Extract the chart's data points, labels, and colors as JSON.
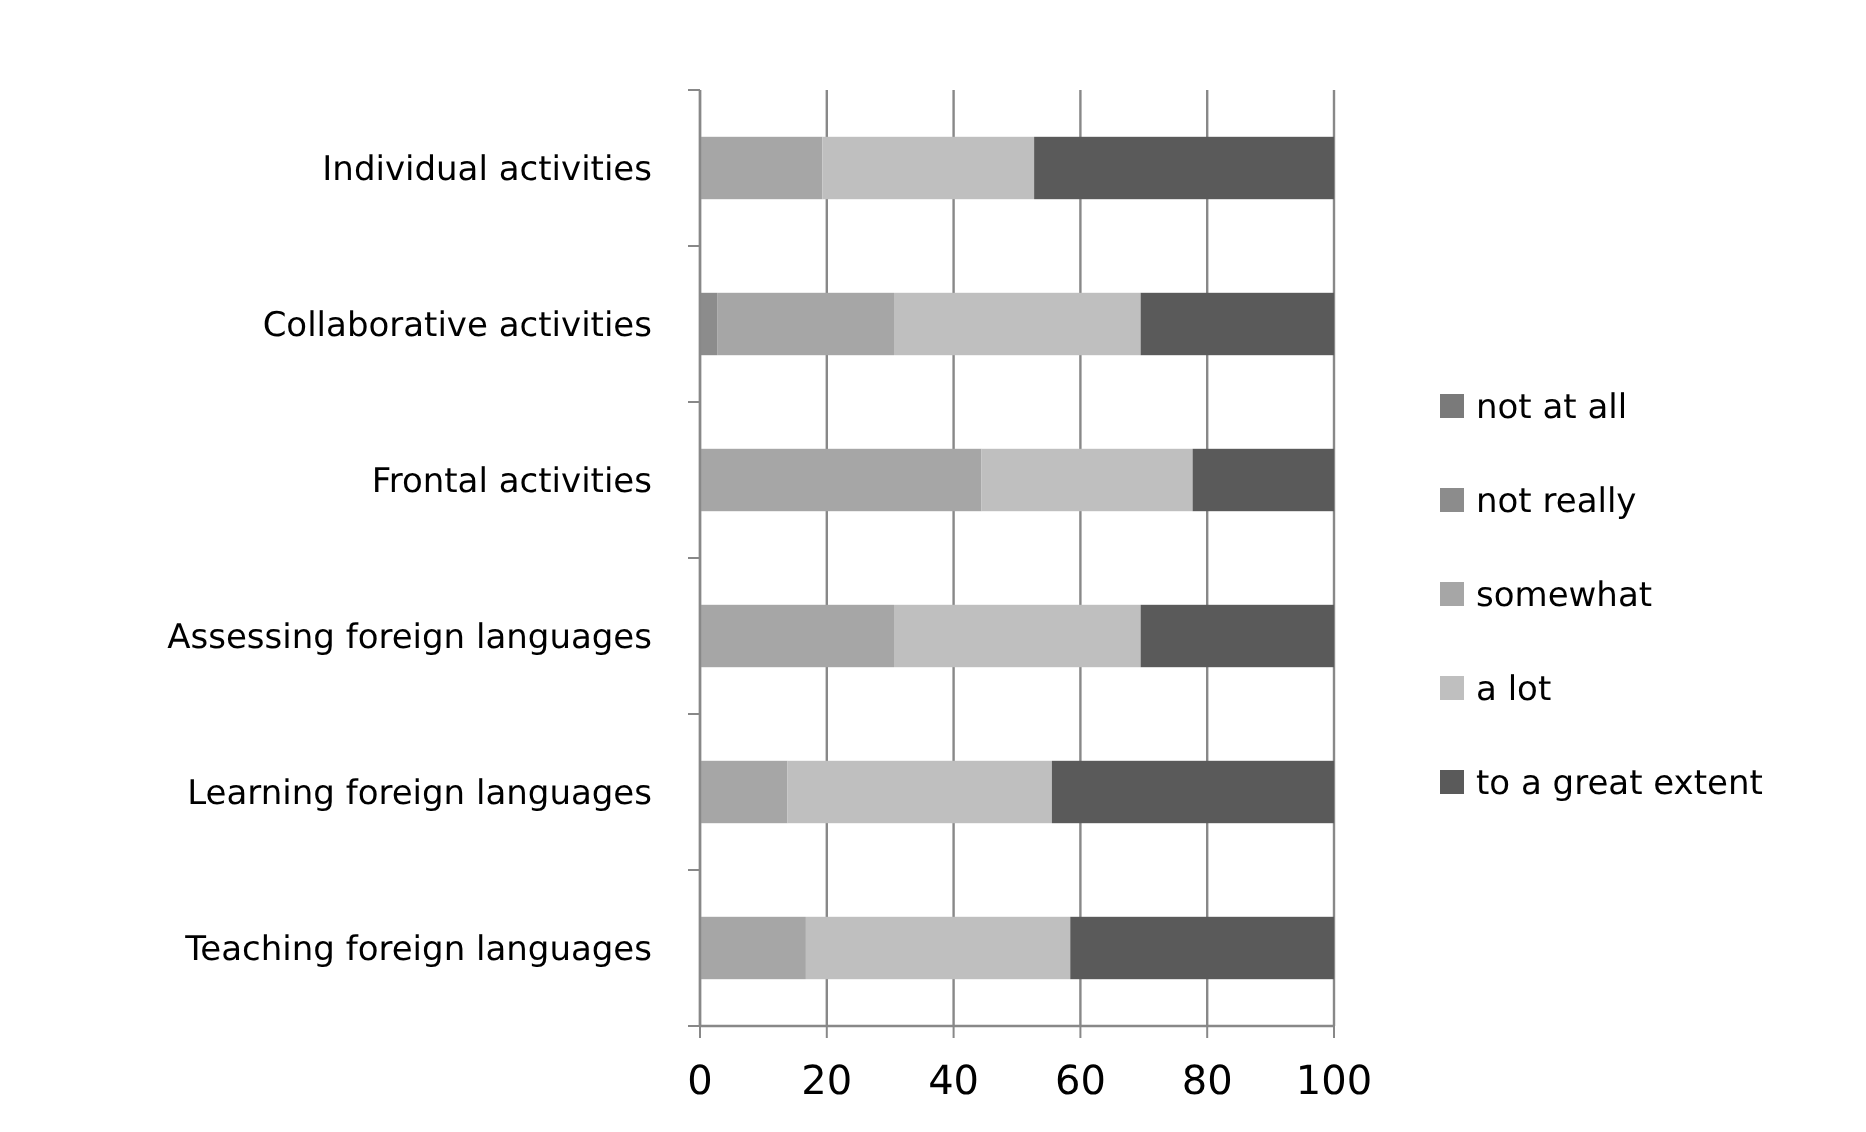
{
  "chart_data": {
    "type": "bar",
    "orientation": "horizontal",
    "stacked": true,
    "categories": [
      "Individual activities",
      "Collaborative activities",
      "Frontal activities",
      "Assessing foreign languages",
      "Learning foreign languages",
      "Teaching foreign languages"
    ],
    "series": [
      {
        "name": "not at all",
        "color": "#7a7a7a",
        "values": [
          0,
          0,
          0,
          0,
          0,
          0
        ]
      },
      {
        "name": "not really",
        "color": "#8c8c8c",
        "values": [
          0,
          2.7,
          0,
          0,
          0,
          0
        ]
      },
      {
        "name": "somewhat",
        "color": "#a6a6a6",
        "values": [
          19.3,
          27.9,
          44.4,
          30.6,
          13.8,
          16.7
        ]
      },
      {
        "name": "a lot",
        "color": "#bfbfbf",
        "values": [
          33.4,
          38.9,
          33.3,
          38.9,
          41.7,
          41.7
        ]
      },
      {
        "name": "to a great extent",
        "color": "#5a5a5a",
        "values": [
          47.3,
          30.5,
          22.3,
          30.5,
          44.5,
          41.6
        ]
      }
    ],
    "xlim": [
      0,
      100
    ],
    "xticks": [
      0,
      20,
      40,
      60,
      80,
      100
    ],
    "grid": "x",
    "legend": "right"
  }
}
